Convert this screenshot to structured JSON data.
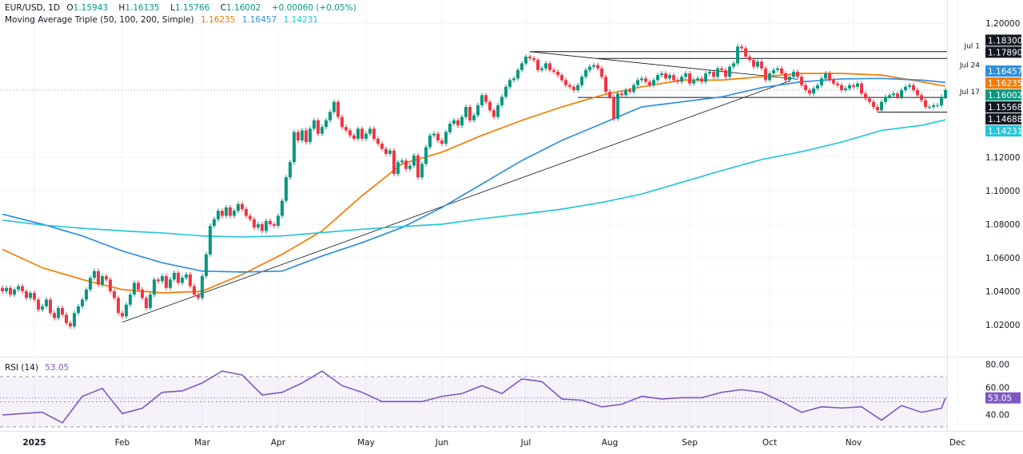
{
  "header": {
    "symbol": "EUR/USD, 1D",
    "open_label": "O",
    "open": "1.15943",
    "high_label": "H",
    "high": "1.16135",
    "low_label": "L",
    "low": "1.15766",
    "close_label": "C",
    "close": "1.16002",
    "change": "+0.00060 (+0.05%)",
    "ma_title": "Moving Average Triple (50, 100, 200, Simple)",
    "ma50": "1.16235",
    "ma100": "1.16457",
    "ma200": "1.14231"
  },
  "rsi_header": {
    "title": "RSI (14)",
    "value": "53.05"
  },
  "colors": {
    "up": "#089981",
    "down": "#f23645",
    "ma50": "#f57c00",
    "ma100": "#2f8fdd",
    "ma200": "#26c6da",
    "rsi": "#7e57c2",
    "trendline": "#131722"
  },
  "chart_data": [
    {
      "type": "candlestick",
      "title": "EUR/USD, 1D",
      "ylim": [
        1.0,
        1.2
      ],
      "grid": true,
      "yaxis_ticks": [
        "1.20000",
        "1.12000",
        "1.10000",
        "1.08000",
        "1.06000",
        "1.04000",
        "1.02000"
      ],
      "yaxis_tick_values": [
        1.2,
        1.12,
        1.1,
        1.08,
        1.06,
        1.04,
        1.02
      ],
      "xaxis_ticks": [
        {
          "label": "2025",
          "bar": 8
        },
        {
          "label": "Feb",
          "bar": 30
        },
        {
          "label": "Mar",
          "bar": 50
        },
        {
          "label": "Apr",
          "bar": 69
        },
        {
          "label": "May",
          "bar": 91
        },
        {
          "label": "Jun",
          "bar": 110
        },
        {
          "label": "Jul",
          "bar": 131
        },
        {
          "label": "Aug",
          "bar": 152
        },
        {
          "label": "Sep",
          "bar": 172
        },
        {
          "label": "Oct",
          "bar": 192
        },
        {
          "label": "Nov",
          "bar": 213
        },
        {
          "label": "Dec",
          "bar": 239
        }
      ],
      "closes": [
        1.04,
        1.042,
        1.038,
        1.041,
        1.043,
        1.04,
        1.036,
        1.039,
        1.035,
        1.029,
        1.031,
        1.035,
        1.027,
        1.024,
        1.03,
        1.026,
        1.021,
        1.019,
        1.027,
        1.031,
        1.035,
        1.041,
        1.048,
        1.052,
        1.044,
        1.049,
        1.047,
        1.04,
        1.036,
        1.027,
        1.025,
        1.032,
        1.038,
        1.045,
        1.041,
        1.036,
        1.03,
        1.038,
        1.047,
        1.046,
        1.049,
        1.042,
        1.047,
        1.051,
        1.045,
        1.048,
        1.05,
        1.043,
        1.038,
        1.036,
        1.049,
        1.062,
        1.079,
        1.083,
        1.088,
        1.085,
        1.09,
        1.085,
        1.088,
        1.092,
        1.089,
        1.085,
        1.083,
        1.078,
        1.08,
        1.076,
        1.082,
        1.08,
        1.079,
        1.085,
        1.094,
        1.108,
        1.117,
        1.135,
        1.13,
        1.136,
        1.129,
        1.137,
        1.142,
        1.134,
        1.138,
        1.142,
        1.147,
        1.153,
        1.144,
        1.138,
        1.136,
        1.133,
        1.131,
        1.137,
        1.131,
        1.134,
        1.137,
        1.131,
        1.128,
        1.125,
        1.122,
        1.124,
        1.11,
        1.117,
        1.118,
        1.113,
        1.115,
        1.121,
        1.108,
        1.116,
        1.126,
        1.133,
        1.134,
        1.13,
        1.128,
        1.135,
        1.14,
        1.142,
        1.139,
        1.144,
        1.15,
        1.142,
        1.145,
        1.151,
        1.157,
        1.153,
        1.148,
        1.144,
        1.151,
        1.156,
        1.162,
        1.166,
        1.167,
        1.172,
        1.176,
        1.18,
        1.179,
        1.178,
        1.172,
        1.173,
        1.176,
        1.172,
        1.171,
        1.169,
        1.166,
        1.163,
        1.162,
        1.16,
        1.163,
        1.168,
        1.172,
        1.174,
        1.175,
        1.173,
        1.168,
        1.159,
        1.156,
        1.143,
        1.158,
        1.157,
        1.16,
        1.159,
        1.163,
        1.166,
        1.167,
        1.165,
        1.163,
        1.166,
        1.169,
        1.17,
        1.167,
        1.169,
        1.166,
        1.165,
        1.168,
        1.17,
        1.164,
        1.166,
        1.167,
        1.165,
        1.17,
        1.171,
        1.168,
        1.173,
        1.172,
        1.168,
        1.174,
        1.176,
        1.186,
        1.185,
        1.18,
        1.178,
        1.174,
        1.177,
        1.173,
        1.166,
        1.17,
        1.172,
        1.173,
        1.17,
        1.166,
        1.168,
        1.171,
        1.168,
        1.163,
        1.16,
        1.158,
        1.161,
        1.163,
        1.167,
        1.17,
        1.166,
        1.164,
        1.163,
        1.16,
        1.161,
        1.163,
        1.162,
        1.164,
        1.158,
        1.155,
        1.153,
        1.15,
        1.148,
        1.153,
        1.156,
        1.157,
        1.158,
        1.156,
        1.16,
        1.162,
        1.163,
        1.16,
        1.157,
        1.154,
        1.15,
        1.15,
        1.151,
        1.151,
        1.156,
        1.16
      ],
      "moving_averages": [
        {
          "name": "50",
          "color_key": "ma50",
          "every_n_bars": 10,
          "values": [
            1.065,
            1.054,
            1.047,
            1.041,
            1.039,
            1.04,
            1.05,
            1.062,
            1.076,
            1.097,
            1.116,
            1.123,
            1.133,
            1.142,
            1.15,
            1.157,
            1.162,
            1.166,
            1.166,
            1.168,
            1.17,
            1.17,
            1.169,
            1.165
          ],
          "last": 1.16235
        },
        {
          "name": "100",
          "color_key": "ma100",
          "every_n_bars": 10,
          "values": [
            1.086,
            1.08,
            1.073,
            1.064,
            1.057,
            1.052,
            1.0515,
            1.052,
            1.061,
            1.069,
            1.078,
            1.09,
            1.104,
            1.118,
            1.13,
            1.14,
            1.15,
            1.153,
            1.156,
            1.1615,
            1.165,
            1.1667,
            1.167,
            1.166
          ],
          "last": 1.16457
        },
        {
          "name": "200",
          "color_key": "ma200",
          "every_n_bars": 10,
          "values": [
            1.0824,
            1.0795,
            1.0776,
            1.076,
            1.0748,
            1.073,
            1.0724,
            1.073,
            1.075,
            1.077,
            1.0786,
            1.08,
            1.0833,
            1.086,
            1.089,
            1.093,
            1.098,
            1.105,
            1.112,
            1.1186,
            1.1233,
            1.129,
            1.136,
            1.139
          ],
          "last": 1.14231
        }
      ],
      "trendlines": [
        {
          "from": {
            "bar": 30,
            "price": 1.0215
          },
          "to": {
            "bar": 197,
            "price": 1.1655
          }
        },
        {
          "from": {
            "bar": 132,
            "price": 1.183
          },
          "to": {
            "bar": 199,
            "price": 1.1665
          }
        }
      ],
      "levels": [
        {
          "label": "Jul 1",
          "price": 1.183,
          "from_bar": 132
        },
        {
          "label": "Jul 24",
          "price": 1.1789,
          "from_bar": 149
        },
        {
          "label": "Jul 17",
          "price": 1.15568,
          "from_bar": 144
        },
        {
          "label": "",
          "price": 1.14688,
          "from_bar": 219
        }
      ],
      "price_badges": [
        {
          "text": "1.18300",
          "price": 1.183,
          "color": "#131722"
        },
        {
          "text": "1.17890",
          "price": 1.1789,
          "color": "#131722"
        },
        {
          "text": "1.16457",
          "price": 1.16457,
          "color": "#2f8fdd"
        },
        {
          "text": "1.16235",
          "price": 1.16235,
          "color": "#f57c00"
        },
        {
          "text": "1.16002",
          "price": 1.16002,
          "color": "#089981"
        },
        {
          "text": "1.15568",
          "price": 1.15568,
          "color": "#131722"
        },
        {
          "text": "1.14688",
          "price": 1.14688,
          "color": "#131722"
        },
        {
          "text": "1.14231",
          "price": 1.14231,
          "color": "#26c6da"
        }
      ],
      "last_price": 1.16002
    },
    {
      "type": "line",
      "title": "RSI (14)",
      "ylim": [
        20,
        85
      ],
      "yaxis_ticks": [
        "80.00",
        "60.00",
        "40.00"
      ],
      "yaxis_tick_values": [
        80,
        60,
        40
      ],
      "bands": {
        "upper": 70,
        "middle": 50,
        "lower": 30
      },
      "every_n_bars": 5,
      "values": [
        39.5,
        40.6,
        41.6,
        33.2,
        54.3,
        60.6,
        40.6,
        44.8,
        57.5,
        58.6,
        64.9,
        74.4,
        71.3,
        55.4,
        57.5,
        64.9,
        74.4,
        62.8,
        57.5,
        50.1,
        50.1,
        50.1,
        54.3,
        56.5,
        62.8,
        56.5,
        68.1,
        66,
        52.2,
        51.2,
        45.9,
        48,
        54.3,
        52.2,
        53.2,
        53.2,
        57.5,
        59.6,
        57.5,
        50.1,
        41.6,
        46,
        45,
        46,
        35.3,
        47,
        41.6,
        44.8
      ],
      "last": 53.05,
      "badge": {
        "text": "53.05",
        "color": "#7e57c2"
      }
    }
  ]
}
